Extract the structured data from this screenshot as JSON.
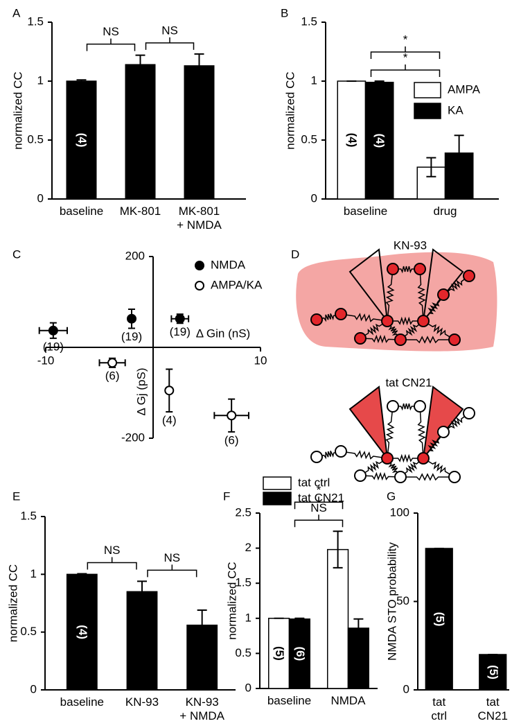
{
  "chart_data": [
    {
      "panel": "A",
      "type": "bar",
      "y_label": "normalized CC",
      "categories": [
        "baseline",
        "MK-801",
        "MK-801\n+ NMDA"
      ],
      "series": [
        {
          "color": "#000000",
          "values": [
            1.0,
            1.14,
            1.13
          ],
          "errors": [
            0.01,
            0.08,
            0.1
          ],
          "n_labels": [
            "(4)",
            null,
            null
          ]
        }
      ],
      "ylim": [
        0,
        1.5
      ],
      "yticks": [
        0,
        0.5,
        1,
        1.5
      ],
      "comparisons": [
        {
          "from": 0,
          "to": 1,
          "label": "NS"
        },
        {
          "from": 1,
          "to": 2,
          "label": "NS"
        }
      ]
    },
    {
      "panel": "B",
      "type": "bar",
      "y_label": "normalized CC",
      "categories": [
        "baseline",
        "drug"
      ],
      "series": [
        {
          "name": "AMPA",
          "color": "#ffffff",
          "values": [
            1.0,
            0.27
          ],
          "errors": [
            0,
            0.08
          ],
          "n_labels": [
            "(4)",
            null
          ]
        },
        {
          "name": "KA",
          "color": "#000000",
          "values": [
            0.99,
            0.39
          ],
          "errors": [
            0.01,
            0.15
          ],
          "n_labels": [
            "(4)",
            null
          ]
        }
      ],
      "ylim": [
        0,
        1.5
      ],
      "yticks": [
        0,
        0.5,
        1,
        1.5
      ],
      "legend": "right",
      "comparisons": [
        {
          "from": 0,
          "to": 1,
          "label": "*"
        },
        {
          "from": 0,
          "to": 1,
          "label": "*"
        }
      ]
    },
    {
      "panel": "C",
      "type": "scatter",
      "x_label": "Δ Gin (nS)",
      "y_label": "Δ Gj (pS)",
      "series": [
        {
          "name": "NMDA",
          "color": "#000000",
          "x": [
            -9.3,
            -2.0,
            2.5
          ],
          "values": [
            37,
            63,
            63
          ],
          "xerr": [
            1.3,
            0,
            0.8
          ],
          "yerr": [
            17,
            21,
            10
          ],
          "n_labels": [
            "(19)",
            "(19)",
            "(19)"
          ]
        },
        {
          "name": "AMPA/KA",
          "color": "#ffffff",
          "x": [
            -3.8,
            1.5,
            7.3
          ],
          "values": [
            -34,
            -95,
            -150
          ],
          "xerr": [
            1.2,
            0,
            1.6
          ],
          "yerr": [
            10,
            47,
            36
          ],
          "n_labels": [
            "(6)",
            "(4)",
            "(6)"
          ]
        }
      ],
      "xlim": [
        -10,
        10
      ],
      "xticks": [
        -10,
        10
      ],
      "ylim": [
        -200,
        200
      ],
      "yticks": [
        -200,
        200
      ],
      "legend": "upper right"
    },
    {
      "panel": "E",
      "type": "bar",
      "y_label": "normalized CC",
      "categories": [
        "baseline",
        "KN-93",
        "KN-93\n+ NMDA"
      ],
      "series": [
        {
          "color": "#000000",
          "values": [
            1.0,
            0.85,
            0.56
          ],
          "errors": [
            0.005,
            0.09,
            0.13
          ],
          "n_labels": [
            "(4)",
            null,
            null
          ]
        }
      ],
      "ylim": [
        0,
        1.5
      ],
      "yticks": [
        0,
        0.5,
        1,
        1.5
      ],
      "comparisons": [
        {
          "from": 0,
          "to": 1,
          "label": "NS"
        },
        {
          "from": 1,
          "to": 2,
          "label": "NS"
        }
      ]
    },
    {
      "panel": "F",
      "type": "bar",
      "y_label": "normalized CC",
      "categories": [
        "baseline",
        "NMDA"
      ],
      "series": [
        {
          "name": "tat ctrl",
          "color": "#ffffff",
          "values": [
            1.0,
            1.98
          ],
          "errors": [
            0,
            0.26
          ],
          "n_labels": [
            "(5)",
            null
          ]
        },
        {
          "name": "tat CN21",
          "color": "#000000",
          "values": [
            0.99,
            0.86
          ],
          "errors": [
            0.01,
            0.13
          ],
          "n_labels": [
            "(6)",
            null
          ]
        }
      ],
      "ylim": [
        0,
        2.5
      ],
      "yticks": [
        0,
        0.5,
        1,
        1.5,
        2,
        2.5
      ],
      "legend": "top",
      "comparisons": [
        {
          "from": 0,
          "to": 1,
          "label": "NS"
        },
        {
          "from": 0,
          "to": 1,
          "label": "*"
        }
      ]
    },
    {
      "panel": "G",
      "type": "bar",
      "y_label": "NMDA STO probability",
      "categories": [
        "tat\nctrl",
        "tat\nCN21"
      ],
      "series": [
        {
          "color": "#000000",
          "values": [
            80,
            20
          ],
          "errors": [
            0,
            0
          ],
          "n_labels": [
            "(5)",
            "(5)"
          ]
        }
      ],
      "ylim": [
        0,
        100
      ],
      "yticks": [
        0,
        50,
        100
      ]
    }
  ],
  "diagram": {
    "panel": "D",
    "labels": [
      "KN-93",
      "tat CN21"
    ]
  }
}
